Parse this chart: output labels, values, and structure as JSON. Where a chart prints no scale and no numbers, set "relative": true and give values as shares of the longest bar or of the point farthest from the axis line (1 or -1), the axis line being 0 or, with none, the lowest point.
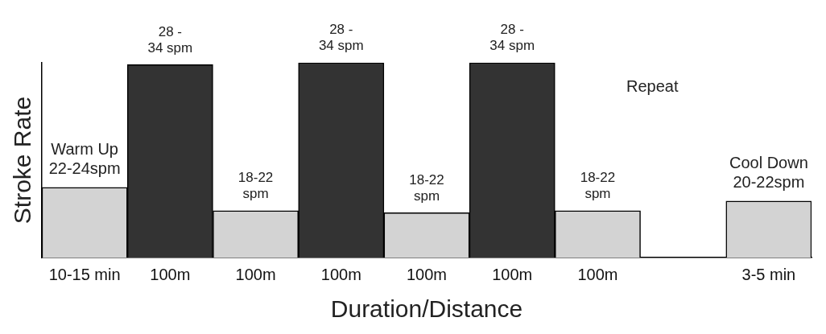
{
  "chart_data": {
    "type": "bar",
    "relative": true,
    "xlabel": "Duration/Distance",
    "ylabel": "Stroke Rate",
    "categories": [
      "10-15 min",
      "100m",
      "100m",
      "100m",
      "100m",
      "100m",
      "100m",
      null,
      "3-5 min"
    ],
    "values": [
      0.36,
      0.99,
      0.24,
      1,
      0.23,
      1,
      0.24,
      null,
      0.29
    ],
    "colors": [
      "#d3d3d3",
      "#333333",
      "#d3d3d3",
      "#333333",
      "#d3d3d3",
      "#333333",
      "#d3d3d3",
      "#d3d3d3",
      "#d3d3d3"
    ],
    "annotations": [
      "Warm Up\n22-24spm",
      "28 -\n34 spm",
      "18-22\nspm",
      "28 -\n34 spm",
      "18-22\nspm",
      "28 -\n34 spm",
      "18-22\nspm",
      "Cool Down\n20-22spm",
      "Repeat"
    ],
    "grid": false,
    "legend": false
  }
}
